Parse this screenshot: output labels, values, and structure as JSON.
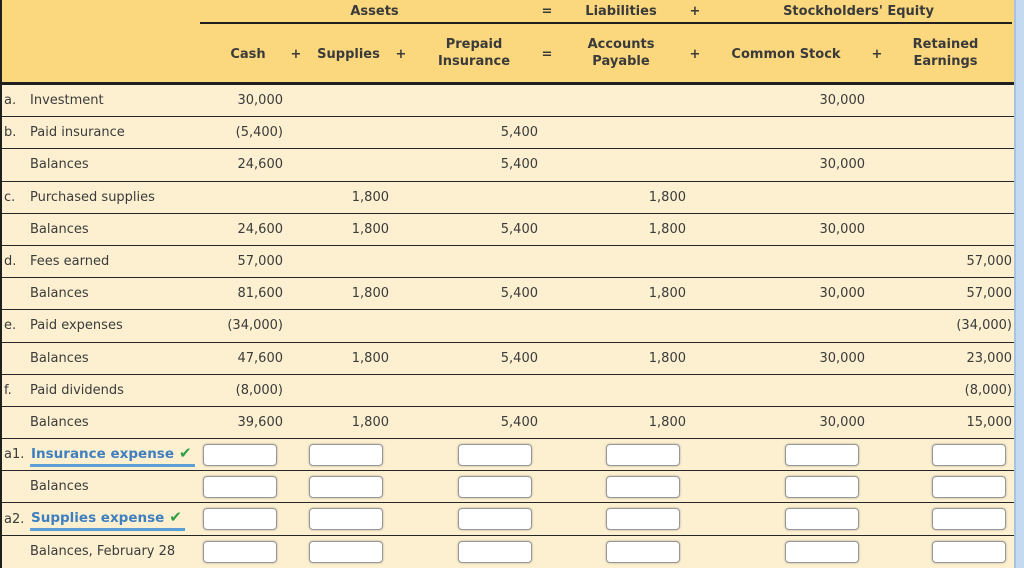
{
  "colors": {
    "header_bg": "#fbd87e",
    "body_bg": "#fcf0d0",
    "line": "#1f1f1f",
    "text": "#3b3b3b",
    "link_blue": "#3f7fbf",
    "link_underline": "#5c9fd6",
    "check_green": "#2f9e44",
    "scrollbar_track": "#c3daf1",
    "input_border": "#979797"
  },
  "header": {
    "group_labels": {
      "assets": "Assets",
      "liabilities": "Liabilities",
      "equity": "Stockholders' Equity"
    },
    "operators": {
      "eq": "=",
      "plus": "+"
    },
    "columns": [
      {
        "key": "cash",
        "label": "Cash"
      },
      {
        "key": "supplies",
        "label": "Supplies"
      },
      {
        "key": "prepaid",
        "line1": "Prepaid",
        "line2": "Insurance"
      },
      {
        "key": "ap",
        "line1": "Accounts",
        "line2": "Payable"
      },
      {
        "key": "cs",
        "label": "Common Stock"
      },
      {
        "key": "re",
        "line1": "Retained",
        "line2": "Earnings"
      }
    ]
  },
  "rows": [
    {
      "letter": "a.",
      "label": "Investment",
      "cells": {
        "cash": "30,000",
        "cs": "30,000"
      }
    },
    {
      "letter": "b.",
      "label": "Paid insurance",
      "cells": {
        "cash": "(5,400)",
        "prepaid": "5,400"
      }
    },
    {
      "letter": "",
      "label": "Balances",
      "cells": {
        "cash": "24,600",
        "prepaid": "5,400",
        "cs": "30,000"
      }
    },
    {
      "letter": "c.",
      "label": "Purchased supplies",
      "cells": {
        "supplies": "1,800",
        "ap": "1,800"
      }
    },
    {
      "letter": "",
      "label": "Balances",
      "cells": {
        "cash": "24,600",
        "supplies": "1,800",
        "prepaid": "5,400",
        "ap": "1,800",
        "cs": "30,000"
      }
    },
    {
      "letter": "d.",
      "label": "Fees earned",
      "cells": {
        "cash": "57,000",
        "re": "57,000"
      }
    },
    {
      "letter": "",
      "label": "Balances",
      "cells": {
        "cash": "81,600",
        "supplies": "1,800",
        "prepaid": "5,400",
        "ap": "1,800",
        "cs": "30,000",
        "re": "57,000"
      }
    },
    {
      "letter": "e.",
      "label": "Paid expenses",
      "cells": {
        "cash": "(34,000)",
        "re": "(34,000)"
      }
    },
    {
      "letter": "",
      "label": "Balances",
      "cells": {
        "cash": "47,600",
        "supplies": "1,800",
        "prepaid": "5,400",
        "ap": "1,800",
        "cs": "30,000",
        "re": "23,000"
      }
    },
    {
      "letter": "f.",
      "label": "Paid dividends",
      "cells": {
        "cash": "(8,000)",
        "re": "(8,000)"
      }
    },
    {
      "letter": "",
      "label": "Balances",
      "cells": {
        "cash": "39,600",
        "supplies": "1,800",
        "prepaid": "5,400",
        "ap": "1,800",
        "cs": "30,000",
        "re": "15,000"
      }
    },
    {
      "letter": "a1.",
      "label": "Insurance expense",
      "link": true,
      "checkmark": "✔",
      "inputs": true,
      "input_values": {
        "cash": "",
        "supplies": "",
        "prepaid": "",
        "ap": "",
        "cs": "",
        "re": ""
      }
    },
    {
      "letter": "",
      "label": "Balances",
      "inputs": true,
      "input_values": {
        "cash": "",
        "supplies": "",
        "prepaid": "",
        "ap": "",
        "cs": "",
        "re": ""
      }
    },
    {
      "letter": "a2.",
      "label": "Supplies expense",
      "link": true,
      "checkmark": "✔",
      "inputs": true,
      "input_values": {
        "cash": "",
        "supplies": "",
        "prepaid": "",
        "ap": "",
        "cs": "",
        "re": ""
      }
    },
    {
      "letter": "",
      "label": "Balances, February 28",
      "inputs": true,
      "input_values": {
        "cash": "",
        "supplies": "",
        "prepaid": "",
        "ap": "",
        "cs": "",
        "re": ""
      }
    }
  ]
}
